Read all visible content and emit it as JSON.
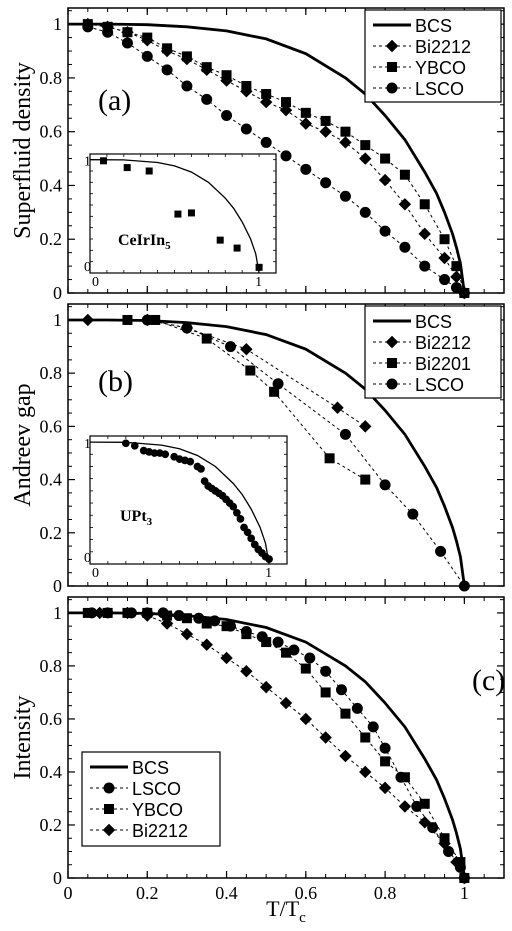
{
  "figure": {
    "xlabel_main": "T/T",
    "xlabel_sub": "c",
    "x_ticks": [
      "0",
      "0.2",
      "0.4",
      "0.6",
      "0.8",
      "1"
    ]
  },
  "chart_data": [
    {
      "type": "line",
      "panel_label": "(a)",
      "ylabel": "Superfluid density",
      "xlim": [
        0,
        1.1
      ],
      "ylim": [
        0,
        1.06
      ],
      "y_ticks": [
        "0",
        "0.2",
        "0.4",
        "0.6",
        "0.8",
        "1"
      ],
      "legend": {
        "placement": "top-right"
      },
      "series": [
        {
          "name": "BCS",
          "marker": "none",
          "style": "solid",
          "x": [
            0,
            0.1,
            0.2,
            0.3,
            0.4,
            0.5,
            0.6,
            0.7,
            0.75,
            0.8,
            0.85,
            0.9,
            0.93,
            0.95,
            0.97,
            0.98,
            0.99,
            1.0
          ],
          "y": [
            1,
            1,
            0.998,
            0.99,
            0.975,
            0.945,
            0.89,
            0.8,
            0.74,
            0.66,
            0.57,
            0.45,
            0.37,
            0.3,
            0.22,
            0.17,
            0.11,
            0
          ]
        },
        {
          "name": "Bi2212",
          "marker": "diamond",
          "style": "dashed",
          "x": [
            0.05,
            0.1,
            0.15,
            0.2,
            0.25,
            0.3,
            0.35,
            0.4,
            0.45,
            0.5,
            0.55,
            0.6,
            0.65,
            0.7,
            0.75,
            0.8,
            0.85,
            0.9,
            0.95,
            0.98,
            1.0
          ],
          "y": [
            1,
            0.99,
            0.97,
            0.94,
            0.9,
            0.87,
            0.83,
            0.79,
            0.75,
            0.71,
            0.68,
            0.63,
            0.6,
            0.56,
            0.5,
            0.42,
            0.33,
            0.22,
            0.13,
            0.06,
            0
          ]
        },
        {
          "name": "YBCO",
          "marker": "square",
          "style": "dashed",
          "x": [
            0.05,
            0.1,
            0.15,
            0.2,
            0.25,
            0.3,
            0.35,
            0.4,
            0.45,
            0.5,
            0.55,
            0.6,
            0.65,
            0.7,
            0.75,
            0.8,
            0.85,
            0.9,
            0.95,
            0.98,
            1.0
          ],
          "y": [
            1,
            0.99,
            0.97,
            0.95,
            0.91,
            0.88,
            0.84,
            0.81,
            0.77,
            0.74,
            0.71,
            0.67,
            0.64,
            0.6,
            0.55,
            0.5,
            0.44,
            0.33,
            0.2,
            0.1,
            0
          ]
        },
        {
          "name": "LSCO",
          "marker": "circle",
          "style": "dashed",
          "x": [
            0.05,
            0.1,
            0.15,
            0.2,
            0.25,
            0.3,
            0.35,
            0.4,
            0.45,
            0.5,
            0.55,
            0.6,
            0.65,
            0.7,
            0.75,
            0.8,
            0.85,
            0.9,
            0.95,
            0.98,
            1.0
          ],
          "y": [
            0.99,
            0.97,
            0.93,
            0.88,
            0.83,
            0.77,
            0.72,
            0.66,
            0.61,
            0.56,
            0.51,
            0.46,
            0.41,
            0.36,
            0.3,
            0.23,
            0.17,
            0.1,
            0.05,
            0.02,
            0
          ]
        }
      ],
      "inset": {
        "label_main": "CeIrIn",
        "label_sub": "5",
        "xlim": [
          0,
          1.1
        ],
        "ylim": [
          0,
          1.05
        ],
        "corner_ticks": {
          "x0": "0",
          "x1": "1",
          "y0": "0",
          "y1": "1"
        },
        "series": [
          {
            "name": "BCS",
            "marker": "none",
            "x": [
              0,
              0.2,
              0.4,
              0.5,
              0.6,
              0.7,
              0.8,
              0.85,
              0.9,
              0.95,
              0.98,
              1.0
            ],
            "y": [
              1,
              0.998,
              0.975,
              0.945,
              0.89,
              0.8,
              0.66,
              0.57,
              0.45,
              0.3,
              0.17,
              0
            ]
          },
          {
            "name": "data",
            "marker": "square",
            "x": [
              0.08,
              0.22,
              0.35,
              0.52,
              0.6,
              0.77,
              0.87,
              1.0
            ],
            "y": [
              0.99,
              0.93,
              0.9,
              0.52,
              0.53,
              0.29,
              0.22,
              0.05
            ]
          }
        ]
      }
    },
    {
      "type": "line",
      "panel_label": "(b)",
      "ylabel": "Andreev gap",
      "xlim": [
        0,
        1.1
      ],
      "ylim": [
        0,
        1.06
      ],
      "y_ticks": [
        "0",
        "0.2",
        "0.4",
        "0.6",
        "0.8",
        "1"
      ],
      "legend": {
        "placement": "top-right"
      },
      "series": [
        {
          "name": "BCS",
          "marker": "none",
          "style": "solid",
          "x": [
            0,
            0.1,
            0.2,
            0.3,
            0.4,
            0.5,
            0.6,
            0.7,
            0.75,
            0.8,
            0.85,
            0.9,
            0.93,
            0.95,
            0.97,
            0.98,
            0.99,
            1.0
          ],
          "y": [
            1,
            1,
            0.998,
            0.99,
            0.975,
            0.945,
            0.89,
            0.8,
            0.74,
            0.66,
            0.57,
            0.45,
            0.37,
            0.3,
            0.22,
            0.17,
            0.11,
            0
          ]
        },
        {
          "name": "Bi2212",
          "marker": "diamond",
          "style": "dashed",
          "x": [
            0.05,
            0.2,
            0.3,
            0.45,
            0.68,
            0.75
          ],
          "y": [
            1,
            1,
            0.97,
            0.89,
            0.67,
            0.6
          ]
        },
        {
          "name": "Bi2201",
          "marker": "square",
          "style": "dashed",
          "x": [
            0.15,
            0.22,
            0.35,
            0.46,
            0.52,
            0.66,
            0.75
          ],
          "y": [
            1,
            1,
            0.93,
            0.81,
            0.73,
            0.48,
            0.4
          ]
        },
        {
          "name": "LSCO",
          "marker": "circle",
          "style": "dashed",
          "x": [
            0.2,
            0.3,
            0.41,
            0.53,
            0.7,
            0.8,
            0.87,
            0.94,
            1.0
          ],
          "y": [
            1,
            0.97,
            0.9,
            0.76,
            0.57,
            0.38,
            0.27,
            0.13,
            0
          ]
        }
      ],
      "inset": {
        "label_main": "UPt",
        "label_sub": "3",
        "xlim": [
          0,
          1.1
        ],
        "ylim": [
          0,
          1.05
        ],
        "corner_ticks": {
          "x0": "0",
          "x1": "1",
          "y0": "0",
          "y1": "1"
        },
        "series": [
          {
            "name": "BCS",
            "marker": "none",
            "x": [
              0,
              0.2,
              0.4,
              0.5,
              0.6,
              0.7,
              0.8,
              0.85,
              0.9,
              0.95,
              0.98,
              1.0
            ],
            "y": [
              1,
              0.998,
              0.975,
              0.945,
              0.89,
              0.8,
              0.66,
              0.57,
              0.45,
              0.3,
              0.17,
              0
            ]
          },
          {
            "name": "data",
            "marker": "circle",
            "x": [
              0.2,
              0.25,
              0.3,
              0.33,
              0.36,
              0.39,
              0.42,
              0.47,
              0.5,
              0.53,
              0.56,
              0.6,
              0.62,
              0.64,
              0.66,
              0.68,
              0.7,
              0.72,
              0.74,
              0.76,
              0.78,
              0.8,
              0.82,
              0.84,
              0.86,
              0.88,
              0.9,
              0.92,
              0.94,
              0.96,
              0.98,
              1.0
            ],
            "y": [
              0.99,
              0.97,
              0.93,
              0.92,
              0.91,
              0.91,
              0.9,
              0.88,
              0.86,
              0.85,
              0.84,
              0.8,
              0.78,
              0.68,
              0.64,
              0.62,
              0.6,
              0.58,
              0.56,
              0.53,
              0.5,
              0.47,
              0.42,
              0.37,
              0.3,
              0.26,
              0.21,
              0.16,
              0.12,
              0.09,
              0.06,
              0.04
            ]
          }
        ]
      }
    },
    {
      "type": "line",
      "panel_label": "(c)",
      "ylabel": "Intensity",
      "xlim": [
        0,
        1.1
      ],
      "ylim": [
        0,
        1.06
      ],
      "y_ticks": [
        "0",
        "0.2",
        "0.4",
        "0.6",
        "0.8",
        "1"
      ],
      "legend": {
        "placement": "bottom-left"
      },
      "series": [
        {
          "name": "BCS",
          "marker": "none",
          "style": "solid",
          "x": [
            0,
            0.1,
            0.2,
            0.3,
            0.4,
            0.5,
            0.6,
            0.7,
            0.75,
            0.8,
            0.85,
            0.9,
            0.93,
            0.95,
            0.97,
            0.98,
            0.99,
            1.0
          ],
          "y": [
            1,
            1,
            0.998,
            0.99,
            0.975,
            0.945,
            0.89,
            0.8,
            0.74,
            0.66,
            0.57,
            0.45,
            0.37,
            0.3,
            0.22,
            0.17,
            0.11,
            0
          ]
        },
        {
          "name": "LSCO",
          "marker": "circle",
          "style": "dashed",
          "x": [
            0.06,
            0.1,
            0.16,
            0.2,
            0.24,
            0.28,
            0.33,
            0.37,
            0.41,
            0.45,
            0.49,
            0.53,
            0.57,
            0.61,
            0.65,
            0.69,
            0.73,
            0.77,
            0.8,
            0.84,
            0.88,
            0.92,
            0.96,
            0.99,
            1.0
          ],
          "y": [
            1,
            1,
            1,
            1,
            1,
            0.99,
            0.98,
            0.97,
            0.95,
            0.93,
            0.91,
            0.89,
            0.86,
            0.83,
            0.78,
            0.71,
            0.64,
            0.57,
            0.49,
            0.38,
            0.27,
            0.19,
            0.1,
            0.04,
            0
          ]
        },
        {
          "name": "YBCO",
          "marker": "square",
          "style": "dashed",
          "x": [
            0.05,
            0.1,
            0.15,
            0.2,
            0.25,
            0.3,
            0.35,
            0.4,
            0.45,
            0.5,
            0.55,
            0.6,
            0.65,
            0.7,
            0.75,
            0.8,
            0.85,
            0.9,
            0.95,
            0.99,
            1.0
          ],
          "y": [
            1,
            1,
            1,
            1,
            0.99,
            0.98,
            0.96,
            0.95,
            0.92,
            0.89,
            0.85,
            0.79,
            0.7,
            0.62,
            0.53,
            0.44,
            0.38,
            0.28,
            0.15,
            0.06,
            0
          ]
        },
        {
          "name": "Bi2212",
          "marker": "diamond",
          "style": "dashed",
          "x": [
            0.08,
            0.15,
            0.2,
            0.25,
            0.3,
            0.35,
            0.4,
            0.45,
            0.5,
            0.55,
            0.6,
            0.65,
            0.7,
            0.75,
            0.8,
            0.85,
            0.9,
            0.95,
            0.98,
            1.0
          ],
          "y": [
            1,
            1,
            0.99,
            0.96,
            0.92,
            0.88,
            0.83,
            0.78,
            0.72,
            0.66,
            0.6,
            0.53,
            0.46,
            0.4,
            0.34,
            0.27,
            0.21,
            0.13,
            0.06,
            0
          ]
        }
      ]
    }
  ]
}
